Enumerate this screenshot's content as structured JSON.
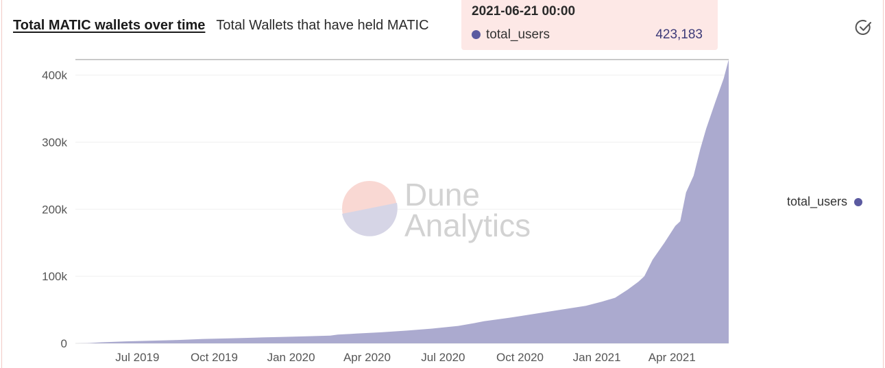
{
  "header": {
    "title": "Total MATIC wallets over time",
    "subtitle": "Total Wallets that have held MATIC"
  },
  "tooltip": {
    "date": "2021-06-21 00:00",
    "series": "total_users",
    "value": "423,183"
  },
  "legend": {
    "label": "total_users"
  },
  "watermark": {
    "line1": "Dune",
    "line2": "Analytics"
  },
  "colors": {
    "series": "#a6a5cc",
    "series_dot": "#5b5aa0",
    "tooltip_bg": "#fde8e6",
    "logo_top": "#f9d8d3",
    "logo_bottom": "#d6d5e6"
  },
  "chart_data": {
    "type": "area",
    "series": [
      {
        "name": "total_users",
        "points": [
          [
            "2019-05-01",
            0
          ],
          [
            "2019-05-15",
            300
          ],
          [
            "2019-06-01",
            1500
          ],
          [
            "2019-07-01",
            3000
          ],
          [
            "2019-08-01",
            4000
          ],
          [
            "2019-09-01",
            5000
          ],
          [
            "2019-10-01",
            6500
          ],
          [
            "2019-11-01",
            7500
          ],
          [
            "2019-12-01",
            8500
          ],
          [
            "2020-01-01",
            9500
          ],
          [
            "2020-02-01",
            10500
          ],
          [
            "2020-03-01",
            11500
          ],
          [
            "2020-03-10",
            13000
          ],
          [
            "2020-04-01",
            14500
          ],
          [
            "2020-05-01",
            16500
          ],
          [
            "2020-06-01",
            19000
          ],
          [
            "2020-07-01",
            22000
          ],
          [
            "2020-08-01",
            26000
          ],
          [
            "2020-08-20",
            30000
          ],
          [
            "2020-09-01",
            33000
          ],
          [
            "2020-10-01",
            38000
          ],
          [
            "2020-11-01",
            44000
          ],
          [
            "2020-12-01",
            50000
          ],
          [
            "2021-01-01",
            56000
          ],
          [
            "2021-01-20",
            62000
          ],
          [
            "2021-02-05",
            68000
          ],
          [
            "2021-02-20",
            80000
          ],
          [
            "2021-03-05",
            92000
          ],
          [
            "2021-03-12",
            100000
          ],
          [
            "2021-03-22",
            125000
          ],
          [
            "2021-04-05",
            150000
          ],
          [
            "2021-04-18",
            175000
          ],
          [
            "2021-04-24",
            182000
          ],
          [
            "2021-05-01",
            225000
          ],
          [
            "2021-05-10",
            250000
          ],
          [
            "2021-05-18",
            290000
          ],
          [
            "2021-05-25",
            320000
          ],
          [
            "2021-06-05",
            360000
          ],
          [
            "2021-06-15",
            395000
          ],
          [
            "2021-06-21",
            423183
          ]
        ]
      }
    ],
    "y_ticks": [
      {
        "value": 0,
        "label": "0"
      },
      {
        "value": 100000,
        "label": "100k"
      },
      {
        "value": 200000,
        "label": "200k"
      },
      {
        "value": 300000,
        "label": "300k"
      },
      {
        "value": 400000,
        "label": "400k"
      }
    ],
    "x_ticks": [
      {
        "date": "2019-07-01",
        "label": "Jul 2019"
      },
      {
        "date": "2019-10-01",
        "label": "Oct 2019"
      },
      {
        "date": "2020-01-01",
        "label": "Jan 2020"
      },
      {
        "date": "2020-04-01",
        "label": "Apr 2020"
      },
      {
        "date": "2020-07-01",
        "label": "Jul 2020"
      },
      {
        "date": "2020-10-01",
        "label": "Oct 2020"
      },
      {
        "date": "2021-01-01",
        "label": "Jan 2021"
      },
      {
        "date": "2021-04-01",
        "label": "Apr 2021"
      }
    ],
    "xlim": [
      "2019-05-01",
      "2021-06-21"
    ],
    "ylim": [
      0,
      420000
    ],
    "grid": true,
    "legend_position": "right"
  }
}
